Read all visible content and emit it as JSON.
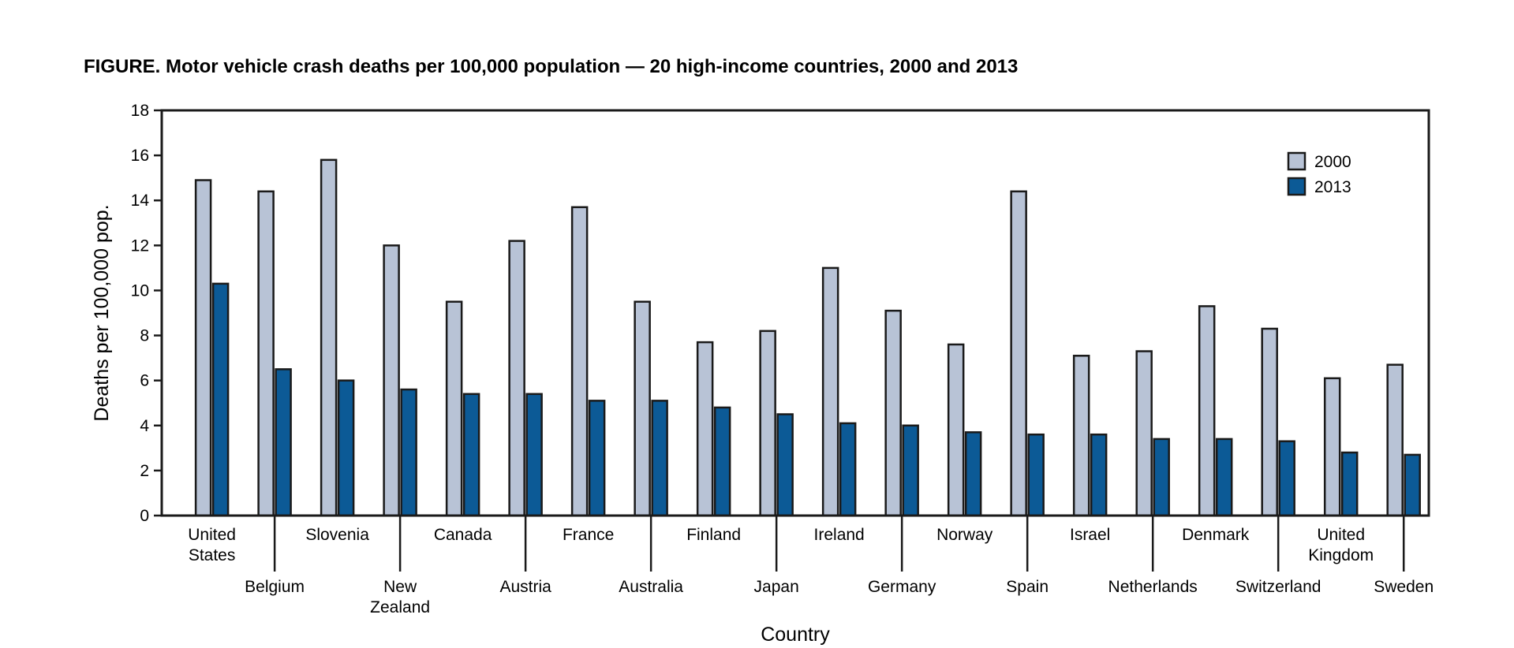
{
  "chart_data": {
    "type": "bar",
    "title": "FIGURE. Motor vehicle crash deaths per 100,000 population — 20 high-income countries, 2000 and 2013",
    "xlabel": "Country",
    "ylabel": "Deaths per 100,000 pop.",
    "ylim": [
      0,
      18
    ],
    "yticks": [
      "0",
      "2",
      "4",
      "6",
      "8",
      "10",
      "12",
      "14",
      "16",
      "18"
    ],
    "grid": false,
    "legend_position": "top-right",
    "categories": [
      "United States",
      "Belgium",
      "Slovenia",
      "New Zealand",
      "Canada",
      "Austria",
      "France",
      "Australia",
      "Finland",
      "Japan",
      "Ireland",
      "Germany",
      "Norway",
      "Spain",
      "Israel",
      "Netherlands",
      "Denmark",
      "Switzerland",
      "United Kingdom",
      "Sweden"
    ],
    "category_lines": [
      [
        "United",
        "States"
      ],
      [
        "Belgium"
      ],
      [
        "Slovenia"
      ],
      [
        "New",
        "Zealand"
      ],
      [
        "Canada"
      ],
      [
        "Austria"
      ],
      [
        "France"
      ],
      [
        "Australia"
      ],
      [
        "Finland"
      ],
      [
        "Japan"
      ],
      [
        "Ireland"
      ],
      [
        "Germany"
      ],
      [
        "Norway"
      ],
      [
        "Spain"
      ],
      [
        "Israel"
      ],
      [
        "Netherlands"
      ],
      [
        "Denmark"
      ],
      [
        "Switzerland"
      ],
      [
        "United",
        "Kingdom"
      ],
      [
        "Sweden"
      ]
    ],
    "series": [
      {
        "name": "2000",
        "color": "#b8c3d6",
        "values": [
          14.9,
          14.4,
          15.8,
          12.0,
          9.5,
          12.2,
          13.7,
          9.5,
          7.7,
          8.2,
          11.0,
          9.1,
          7.6,
          14.4,
          7.1,
          7.3,
          9.3,
          8.3,
          6.1,
          6.7
        ]
      },
      {
        "name": "2013",
        "color": "#0c5a96",
        "values": [
          10.3,
          6.5,
          6.0,
          5.6,
          5.4,
          5.4,
          5.1,
          5.1,
          4.8,
          4.5,
          4.1,
          4.0,
          3.7,
          3.6,
          3.6,
          3.4,
          3.4,
          3.3,
          2.8,
          2.7
        ]
      }
    ]
  }
}
